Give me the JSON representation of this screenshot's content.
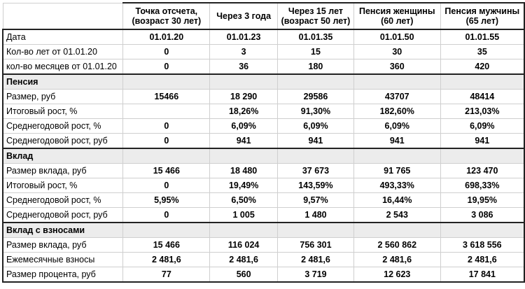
{
  "header": {
    "col0": "",
    "col1_line1": "Точка отсчета,",
    "col1_line2": "(возраст 30 лет)",
    "col2": "Через 3 года",
    "col3_line1": "Через 15 лет",
    "col3_line2": "(возраст 50 лет)",
    "col4_line1": "Пенсия женщины",
    "col4_line2": "(60 лет)",
    "col5_line1": "Пенсия мужчины",
    "col5_line2": "(65 лет)"
  },
  "dates": {
    "label": "Дата",
    "values": [
      "01.01.20",
      "01.01.23",
      "01.01.35",
      "01.01.50",
      "01.01.55"
    ]
  },
  "years": {
    "label": "Кол-во лет от 01.01.20",
    "values": [
      "0",
      "3",
      "15",
      "30",
      "35"
    ]
  },
  "months": {
    "label": "кол-во месяцев от 01.01.20",
    "values": [
      "0",
      "36",
      "180",
      "360",
      "420"
    ]
  },
  "pension": {
    "title": "Пенсия",
    "rows": [
      {
        "label": "Размер, руб",
        "values": [
          "15466",
          "18 290",
          "29586",
          "43707",
          "48414"
        ]
      },
      {
        "label": "Итоговый рост, %",
        "values": [
          "",
          "18,26%",
          "91,30%",
          "182,60%",
          "213,03%"
        ]
      },
      {
        "label": "Среднегодовой рост, %",
        "values": [
          "0",
          "6,09%",
          "6,09%",
          "6,09%",
          "6,09%"
        ]
      },
      {
        "label": "Среднегодовой рост, руб",
        "values": [
          "0",
          "941",
          "941",
          "941",
          "941"
        ]
      }
    ]
  },
  "deposit": {
    "title": "Вклад",
    "rows": [
      {
        "label": "Размер вклада, руб",
        "values": [
          "15 466",
          "18 480",
          "37 673",
          "91 765",
          "123 470"
        ]
      },
      {
        "label": "Итоговый рост, %",
        "values": [
          "0",
          "19,49%",
          "143,59%",
          "493,33%",
          "698,33%"
        ]
      },
      {
        "label": "Среднегодовой рост, %",
        "values": [
          "5,95%",
          "6,50%",
          "9,57%",
          "16,44%",
          "19,95%"
        ]
      },
      {
        "label": "Среднегодовой рост, руб",
        "values": [
          "0",
          "1 005",
          "1 480",
          "2 543",
          "3 086"
        ]
      }
    ]
  },
  "deposit_contrib": {
    "title": "Вклад с взносами",
    "rows": [
      {
        "label": "Размер вклада, руб",
        "values": [
          "15 466",
          "116 024",
          "756 301",
          "2 560 862",
          "3 618 556"
        ]
      },
      {
        "label": "Ежемесячные взносы",
        "values": [
          "2 481,6",
          "2 481,6",
          "2 481,6",
          "2 481,6",
          "2 481,6"
        ]
      },
      {
        "label": "Размер процента, руб",
        "values": [
          "77",
          "560",
          "3 719",
          "12 623",
          "17 841"
        ]
      }
    ]
  }
}
